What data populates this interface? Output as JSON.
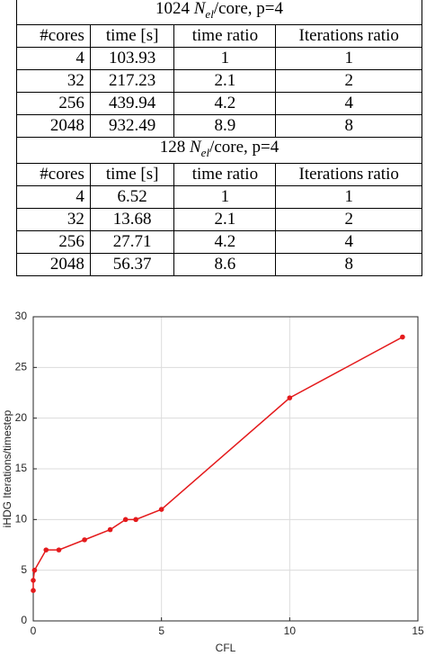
{
  "table": {
    "sections": [
      {
        "title": {
          "number": "1024",
          "symbol": "N",
          "subscript": "el",
          "rest": "/core, p=4"
        },
        "header": [
          "#cores",
          "time [s]",
          "time ratio",
          "Iterations ratio"
        ],
        "rows": [
          [
            4,
            103.93,
            1,
            1
          ],
          [
            32,
            217.23,
            2.1,
            2
          ],
          [
            256,
            439.94,
            4.2,
            4
          ],
          [
            2048,
            932.49,
            8.9,
            8
          ]
        ]
      },
      {
        "title": {
          "number": "128",
          "symbol": "N",
          "subscript": "el",
          "rest": "/core, p=4"
        },
        "header": [
          "#cores",
          "time [s]",
          "time ratio",
          "Iterations ratio"
        ],
        "rows": [
          [
            4,
            6.52,
            1,
            1
          ],
          [
            32,
            13.68,
            2.1,
            2
          ],
          [
            256,
            27.71,
            4.2,
            4
          ],
          [
            2048,
            56.37,
            8.6,
            8
          ]
        ]
      }
    ]
  },
  "chart_data": {
    "type": "line",
    "xlabel": "CFL",
    "ylabel": "iHDG Iterations/timestep",
    "x": [
      0,
      0,
      0.05,
      0.5,
      1,
      2,
      3,
      3.6,
      4,
      5,
      10,
      14.4
    ],
    "values": [
      3,
      4,
      5,
      7,
      7,
      8,
      9,
      10,
      10,
      11,
      22,
      28
    ],
    "color": "#e41a1c",
    "xlim": [
      0,
      15
    ],
    "ylim": [
      0,
      30
    ],
    "xticks": [
      0,
      5,
      10,
      15
    ],
    "yticks": [
      0,
      5,
      10,
      15,
      20,
      25,
      30
    ],
    "grid": true
  }
}
